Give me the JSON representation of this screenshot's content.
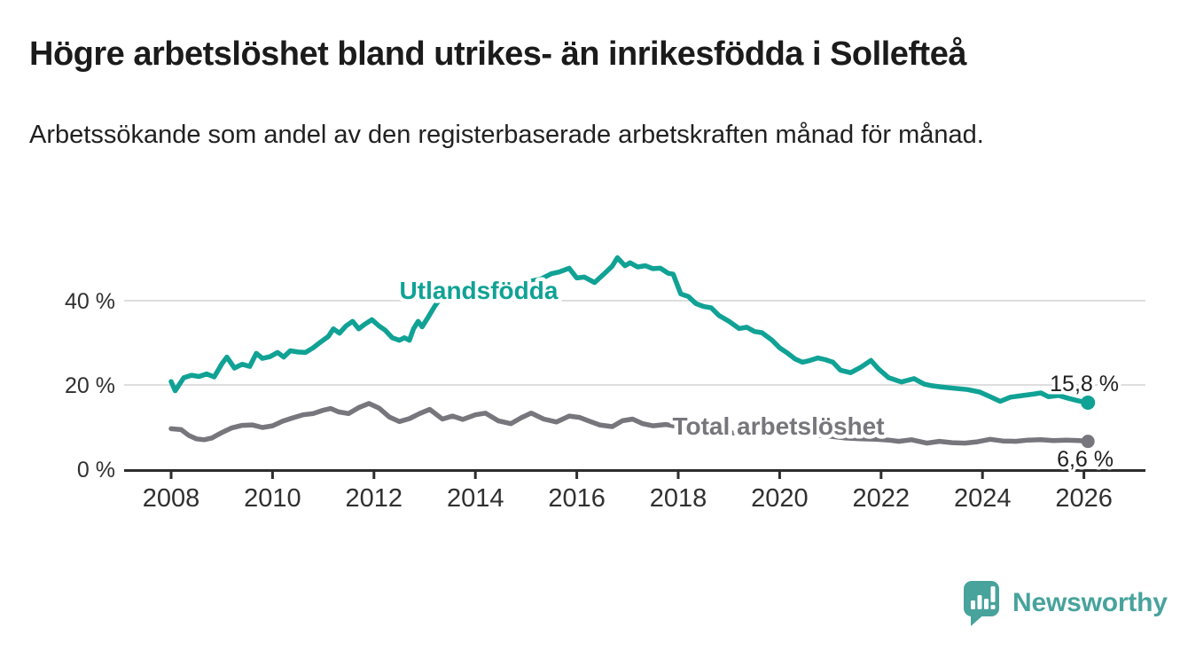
{
  "chart_data": {
    "type": "line",
    "title": "Högre arbetslöshet bland utrikes- än inrikesfödda i Sollefteå",
    "subtitle": "Arbetssökande som andel av den registerbaserade arbetskraften månad för månad.",
    "x_ticks": [
      2008,
      2010,
      2012,
      2014,
      2016,
      2018,
      2020,
      2022,
      2024,
      2026
    ],
    "y_ticks": [
      0,
      20,
      40
    ],
    "y_tick_suffix": " %",
    "xlim": [
      2007.6,
      2027.4
    ],
    "ylim": [
      0,
      52
    ],
    "grid": "horizontal-only",
    "legend": "inline-series-labels",
    "colors": {
      "utlandsfodda": "#10A295",
      "total": "#76767C",
      "grid": "#DEDEDE",
      "axis": "#2D2D2D",
      "tick_text": "#303030",
      "annotation_text": "#1F1F1F"
    },
    "series": [
      {
        "name": "Utlandsfödda",
        "color_key": "utlandsfodda",
        "end_label": "15,8 %",
        "end_value": 15.8,
        "points": [
          [
            2008.0,
            20.8
          ],
          [
            2008.08,
            18.6
          ],
          [
            2008.25,
            21.7
          ],
          [
            2008.4,
            22.3
          ],
          [
            2008.55,
            22.0
          ],
          [
            2008.7,
            22.6
          ],
          [
            2008.85,
            21.9
          ],
          [
            2009.0,
            25.0
          ],
          [
            2009.1,
            26.6
          ],
          [
            2009.25,
            24.0
          ],
          [
            2009.4,
            24.9
          ],
          [
            2009.55,
            24.4
          ],
          [
            2009.68,
            27.5
          ],
          [
            2009.8,
            26.3
          ],
          [
            2009.95,
            26.7
          ],
          [
            2010.1,
            27.7
          ],
          [
            2010.22,
            26.6
          ],
          [
            2010.35,
            28.1
          ],
          [
            2010.5,
            27.8
          ],
          [
            2010.65,
            27.7
          ],
          [
            2010.8,
            28.8
          ],
          [
            2010.95,
            30.2
          ],
          [
            2011.1,
            31.5
          ],
          [
            2011.2,
            33.3
          ],
          [
            2011.32,
            32.3
          ],
          [
            2011.45,
            34.0
          ],
          [
            2011.58,
            35.1
          ],
          [
            2011.7,
            33.3
          ],
          [
            2011.82,
            34.4
          ],
          [
            2011.96,
            35.5
          ],
          [
            2012.1,
            34.0
          ],
          [
            2012.22,
            33.0
          ],
          [
            2012.36,
            31.2
          ],
          [
            2012.5,
            30.6
          ],
          [
            2012.6,
            31.2
          ],
          [
            2012.7,
            30.6
          ],
          [
            2012.78,
            33.3
          ],
          [
            2012.87,
            35.1
          ],
          [
            2012.95,
            33.8
          ],
          [
            2013.06,
            35.9
          ],
          [
            2013.2,
            38.7
          ],
          [
            2013.3,
            40.4
          ],
          [
            2013.45,
            41.3
          ],
          [
            2013.6,
            42.0
          ],
          [
            2013.75,
            41.6
          ],
          [
            2013.9,
            42.3
          ],
          [
            2014.1,
            43.0
          ],
          [
            2014.3,
            42.6
          ],
          [
            2014.5,
            43.4
          ],
          [
            2014.7,
            43.1
          ],
          [
            2014.9,
            44.0
          ],
          [
            2015.1,
            44.6
          ],
          [
            2015.3,
            45.2
          ],
          [
            2015.5,
            46.4
          ],
          [
            2015.65,
            46.8
          ],
          [
            2015.85,
            47.7
          ],
          [
            2016.0,
            45.4
          ],
          [
            2016.15,
            45.6
          ],
          [
            2016.35,
            44.3
          ],
          [
            2016.55,
            46.5
          ],
          [
            2016.7,
            48.2
          ],
          [
            2016.8,
            50.2
          ],
          [
            2016.95,
            48.3
          ],
          [
            2017.05,
            49.0
          ],
          [
            2017.2,
            48.0
          ],
          [
            2017.35,
            48.3
          ],
          [
            2017.5,
            47.6
          ],
          [
            2017.65,
            47.7
          ],
          [
            2017.8,
            46.5
          ],
          [
            2017.9,
            46.3
          ],
          [
            2018.05,
            41.6
          ],
          [
            2018.2,
            41.0
          ],
          [
            2018.35,
            39.3
          ],
          [
            2018.5,
            38.6
          ],
          [
            2018.65,
            38.3
          ],
          [
            2018.8,
            36.5
          ],
          [
            2019.0,
            35.1
          ],
          [
            2019.2,
            33.4
          ],
          [
            2019.35,
            33.7
          ],
          [
            2019.5,
            32.7
          ],
          [
            2019.65,
            32.4
          ],
          [
            2019.85,
            30.6
          ],
          [
            2020.0,
            28.8
          ],
          [
            2020.15,
            27.6
          ],
          [
            2020.3,
            26.2
          ],
          [
            2020.45,
            25.4
          ],
          [
            2020.6,
            25.8
          ],
          [
            2020.75,
            26.4
          ],
          [
            2020.9,
            26.0
          ],
          [
            2021.05,
            25.4
          ],
          [
            2021.2,
            23.5
          ],
          [
            2021.4,
            22.9
          ],
          [
            2021.6,
            24.2
          ],
          [
            2021.8,
            25.8
          ],
          [
            2021.95,
            23.8
          ],
          [
            2022.15,
            21.7
          ],
          [
            2022.4,
            20.7
          ],
          [
            2022.65,
            21.5
          ],
          [
            2022.85,
            20.2
          ],
          [
            2023.0,
            19.8
          ],
          [
            2023.2,
            19.5
          ],
          [
            2023.45,
            19.2
          ],
          [
            2023.7,
            18.9
          ],
          [
            2023.95,
            18.3
          ],
          [
            2024.15,
            17.2
          ],
          [
            2024.35,
            16.1
          ],
          [
            2024.55,
            17.1
          ],
          [
            2024.8,
            17.5
          ],
          [
            2025.0,
            17.8
          ],
          [
            2025.15,
            18.1
          ],
          [
            2025.3,
            17.2
          ],
          [
            2025.5,
            17.5
          ],
          [
            2025.7,
            16.8
          ],
          [
            2025.9,
            16.2
          ],
          [
            2026.08,
            15.8
          ]
        ]
      },
      {
        "name": "Total arbetslöshet",
        "color_key": "total",
        "end_label": "6,6 %",
        "end_value": 6.6,
        "points": [
          [
            2008.0,
            9.6
          ],
          [
            2008.2,
            9.4
          ],
          [
            2008.35,
            8.0
          ],
          [
            2008.5,
            7.2
          ],
          [
            2008.65,
            7.0
          ],
          [
            2008.8,
            7.4
          ],
          [
            2009.0,
            8.7
          ],
          [
            2009.2,
            9.8
          ],
          [
            2009.4,
            10.4
          ],
          [
            2009.6,
            10.5
          ],
          [
            2009.8,
            9.9
          ],
          [
            2010.0,
            10.3
          ],
          [
            2010.2,
            11.4
          ],
          [
            2010.4,
            12.2
          ],
          [
            2010.6,
            12.9
          ],
          [
            2010.8,
            13.2
          ],
          [
            2011.0,
            14.0
          ],
          [
            2011.15,
            14.4
          ],
          [
            2011.3,
            13.6
          ],
          [
            2011.5,
            13.2
          ],
          [
            2011.7,
            14.6
          ],
          [
            2011.9,
            15.6
          ],
          [
            2012.1,
            14.5
          ],
          [
            2012.3,
            12.4
          ],
          [
            2012.5,
            11.3
          ],
          [
            2012.7,
            12.0
          ],
          [
            2012.9,
            13.2
          ],
          [
            2013.1,
            14.2
          ],
          [
            2013.35,
            11.9
          ],
          [
            2013.55,
            12.6
          ],
          [
            2013.75,
            11.8
          ],
          [
            2014.0,
            12.9
          ],
          [
            2014.2,
            13.3
          ],
          [
            2014.45,
            11.5
          ],
          [
            2014.7,
            10.8
          ],
          [
            2014.9,
            12.2
          ],
          [
            2015.1,
            13.3
          ],
          [
            2015.35,
            11.9
          ],
          [
            2015.6,
            11.2
          ],
          [
            2015.85,
            12.6
          ],
          [
            2016.05,
            12.3
          ],
          [
            2016.25,
            11.4
          ],
          [
            2016.45,
            10.5
          ],
          [
            2016.7,
            10.1
          ],
          [
            2016.9,
            11.5
          ],
          [
            2017.1,
            11.9
          ],
          [
            2017.3,
            10.8
          ],
          [
            2017.5,
            10.3
          ],
          [
            2017.75,
            10.6
          ],
          [
            2018.0,
            10.1
          ],
          [
            2018.3,
            9.4
          ],
          [
            2018.6,
            9.0
          ],
          [
            2018.9,
            8.8
          ],
          [
            2019.2,
            8.5
          ],
          [
            2019.5,
            8.3
          ],
          [
            2019.8,
            8.6
          ],
          [
            2020.1,
            8.9
          ],
          [
            2020.4,
            8.4
          ],
          [
            2020.7,
            8.1
          ],
          [
            2021.0,
            7.8
          ],
          [
            2021.3,
            7.4
          ],
          [
            2021.6,
            7.2
          ],
          [
            2021.9,
            7.1
          ],
          [
            2022.15,
            6.9
          ],
          [
            2022.35,
            6.6
          ],
          [
            2022.6,
            7.0
          ],
          [
            2022.9,
            6.2
          ],
          [
            2023.15,
            6.6
          ],
          [
            2023.4,
            6.3
          ],
          [
            2023.65,
            6.2
          ],
          [
            2023.9,
            6.5
          ],
          [
            2024.15,
            7.1
          ],
          [
            2024.4,
            6.7
          ],
          [
            2024.65,
            6.6
          ],
          [
            2024.9,
            6.9
          ],
          [
            2025.15,
            7.0
          ],
          [
            2025.4,
            6.8
          ],
          [
            2025.65,
            6.9
          ],
          [
            2025.9,
            6.8
          ],
          [
            2026.08,
            6.6
          ]
        ]
      }
    ]
  },
  "footer": {
    "brand": "Newsworthy"
  }
}
